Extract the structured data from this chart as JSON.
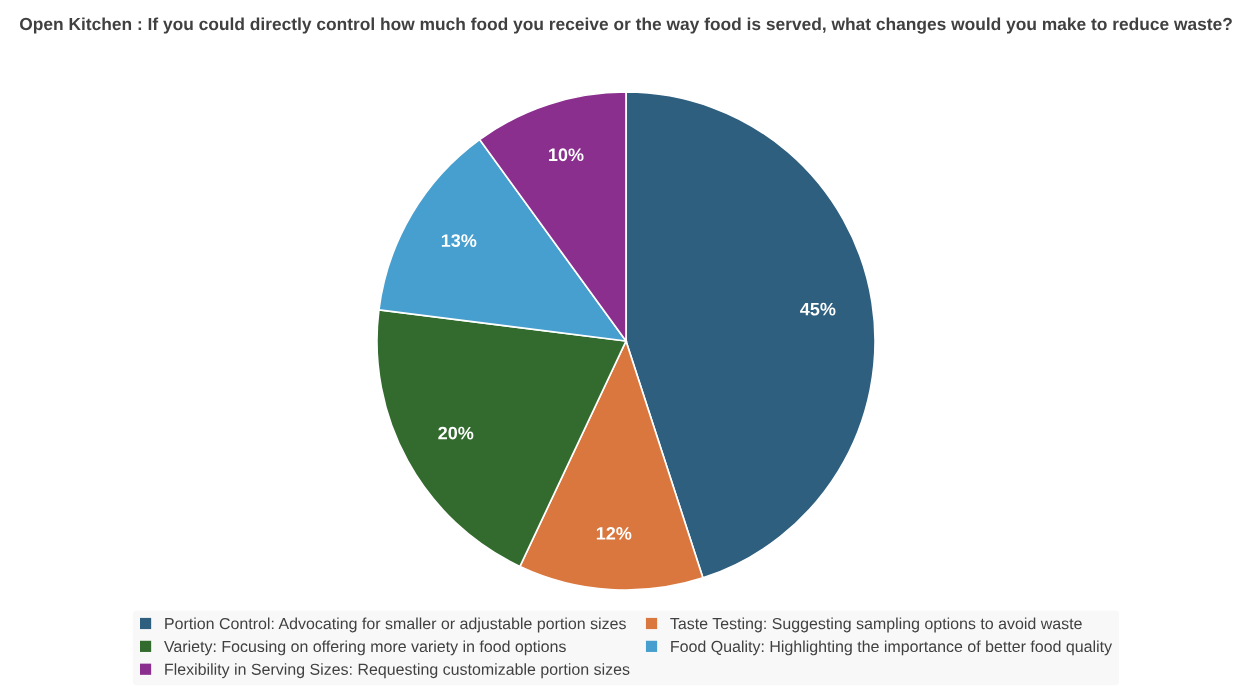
{
  "chart_data": {
    "type": "pie",
    "title": "Open Kitchen : If you could directly control how much food you receive or the way food is served, what changes would you make to reduce waste?",
    "categories": [
      "Portion Control: Advocating for smaller or adjustable portion sizes",
      "Taste Testing: Suggesting sampling options to avoid waste",
      "Variety: Focusing on offering more variety in food options",
      "Food Quality: Highlighting the importance of better food quality",
      "Flexibility in Serving Sizes: Requesting customizable portion sizes"
    ],
    "values": [
      45,
      12,
      20,
      13,
      10
    ],
    "colors": [
      "#2e5f7f",
      "#d9773f",
      "#336b2e",
      "#479fcf",
      "#8b2f8f"
    ],
    "value_labels": [
      "45%",
      "12%",
      "20%",
      "13%",
      "10%"
    ],
    "legend": "bottom"
  }
}
